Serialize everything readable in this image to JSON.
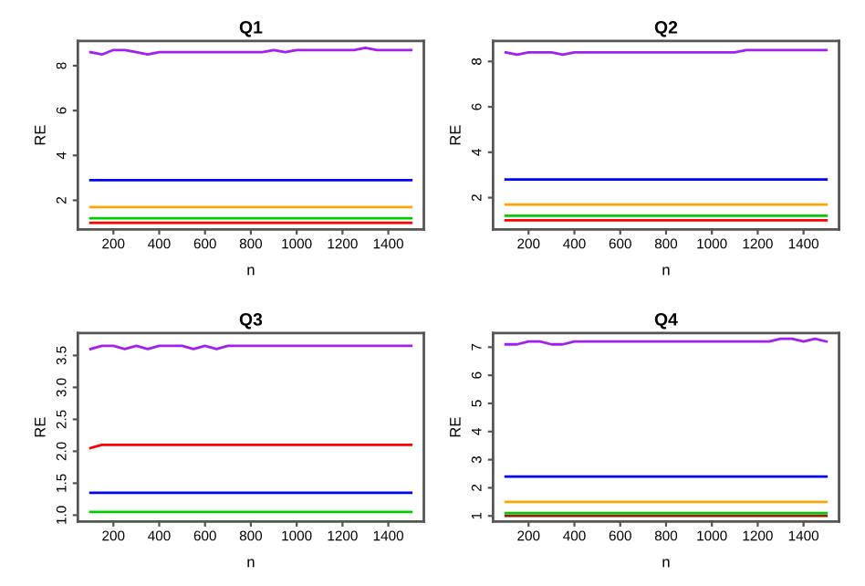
{
  "chart_data": [
    {
      "type": "line",
      "title": "Q1",
      "xlabel": "n",
      "ylabel": "RE",
      "xlim": [
        45,
        1555
      ],
      "ylim": [
        0.7,
        9.1
      ],
      "xticks": [
        200,
        400,
        600,
        800,
        1000,
        1200,
        1400
      ],
      "yticks": [
        2,
        4,
        6,
        8
      ],
      "grid": false,
      "marker": "none",
      "line_style": "solid",
      "x": [
        100,
        150,
        200,
        250,
        300,
        350,
        400,
        450,
        500,
        550,
        600,
        650,
        700,
        750,
        800,
        850,
        900,
        950,
        1000,
        1050,
        1100,
        1150,
        1200,
        1250,
        1300,
        1350,
        1400,
        1450,
        1500
      ],
      "series": [
        {
          "color": "#a020f0",
          "values": [
            8.6,
            8.5,
            8.7,
            8.7,
            8.6,
            8.5,
            8.6,
            8.6,
            8.6,
            8.6,
            8.6,
            8.6,
            8.6,
            8.6,
            8.6,
            8.6,
            8.7,
            8.6,
            8.7,
            8.7,
            8.7,
            8.7,
            8.7,
            8.7,
            8.8,
            8.7,
            8.7,
            8.7,
            8.7
          ]
        },
        {
          "color": "#0000ff",
          "values": [
            2.9,
            2.9,
            2.9,
            2.9,
            2.9,
            2.9,
            2.9,
            2.9,
            2.9,
            2.9,
            2.9,
            2.9,
            2.9,
            2.9,
            2.9,
            2.9,
            2.9,
            2.9,
            2.9,
            2.9,
            2.9,
            2.9,
            2.9,
            2.9,
            2.9,
            2.9,
            2.9,
            2.9,
            2.9
          ]
        },
        {
          "color": "#ffa500",
          "values": [
            1.7,
            1.7,
            1.7,
            1.7,
            1.7,
            1.7,
            1.7,
            1.7,
            1.7,
            1.7,
            1.7,
            1.7,
            1.7,
            1.7,
            1.7,
            1.7,
            1.7,
            1.7,
            1.7,
            1.7,
            1.7,
            1.7,
            1.7,
            1.7,
            1.7,
            1.7,
            1.7,
            1.7,
            1.7
          ]
        },
        {
          "color": "#00cc00",
          "values": [
            1.2,
            1.2,
            1.2,
            1.2,
            1.2,
            1.2,
            1.2,
            1.2,
            1.2,
            1.2,
            1.2,
            1.2,
            1.2,
            1.2,
            1.2,
            1.2,
            1.2,
            1.2,
            1.2,
            1.2,
            1.2,
            1.2,
            1.2,
            1.2,
            1.2,
            1.2,
            1.2,
            1.2,
            1.2
          ]
        },
        {
          "color": "#ff0000",
          "values": [
            1.0,
            1.0,
            1.0,
            1.0,
            1.0,
            1.0,
            1.0,
            1.0,
            1.0,
            1.0,
            1.0,
            1.0,
            1.0,
            1.0,
            1.0,
            1.0,
            1.0,
            1.0,
            1.0,
            1.0,
            1.0,
            1.0,
            1.0,
            1.0,
            1.0,
            1.0,
            1.0,
            1.0,
            1.0
          ]
        }
      ]
    },
    {
      "type": "line",
      "title": "Q2",
      "xlabel": "n",
      "ylabel": "RE",
      "xlim": [
        45,
        1555
      ],
      "ylim": [
        0.6,
        8.9
      ],
      "xticks": [
        200,
        400,
        600,
        800,
        1000,
        1200,
        1400
      ],
      "yticks": [
        2,
        4,
        6,
        8
      ],
      "grid": false,
      "marker": "none",
      "line_style": "solid",
      "x": [
        100,
        150,
        200,
        250,
        300,
        350,
        400,
        450,
        500,
        550,
        600,
        650,
        700,
        750,
        800,
        850,
        900,
        950,
        1000,
        1050,
        1100,
        1150,
        1200,
        1250,
        1300,
        1350,
        1400,
        1450,
        1500
      ],
      "series": [
        {
          "color": "#a020f0",
          "values": [
            8.4,
            8.3,
            8.4,
            8.4,
            8.4,
            8.3,
            8.4,
            8.4,
            8.4,
            8.4,
            8.4,
            8.4,
            8.4,
            8.4,
            8.4,
            8.4,
            8.4,
            8.4,
            8.4,
            8.4,
            8.4,
            8.5,
            8.5,
            8.5,
            8.5,
            8.5,
            8.5,
            8.5,
            8.5
          ]
        },
        {
          "color": "#0000ff",
          "values": [
            2.8,
            2.8,
            2.8,
            2.8,
            2.8,
            2.8,
            2.8,
            2.8,
            2.8,
            2.8,
            2.8,
            2.8,
            2.8,
            2.8,
            2.8,
            2.8,
            2.8,
            2.8,
            2.8,
            2.8,
            2.8,
            2.8,
            2.8,
            2.8,
            2.8,
            2.8,
            2.8,
            2.8,
            2.8
          ]
        },
        {
          "color": "#ffa500",
          "values": [
            1.7,
            1.7,
            1.7,
            1.7,
            1.7,
            1.7,
            1.7,
            1.7,
            1.7,
            1.7,
            1.7,
            1.7,
            1.7,
            1.7,
            1.7,
            1.7,
            1.7,
            1.7,
            1.7,
            1.7,
            1.7,
            1.7,
            1.7,
            1.7,
            1.7,
            1.7,
            1.7,
            1.7,
            1.7
          ]
        },
        {
          "color": "#00cc00",
          "values": [
            1.2,
            1.2,
            1.2,
            1.2,
            1.2,
            1.2,
            1.2,
            1.2,
            1.2,
            1.2,
            1.2,
            1.2,
            1.2,
            1.2,
            1.2,
            1.2,
            1.2,
            1.2,
            1.2,
            1.2,
            1.2,
            1.2,
            1.2,
            1.2,
            1.2,
            1.2,
            1.2,
            1.2,
            1.2
          ]
        },
        {
          "color": "#ff0000",
          "values": [
            1.0,
            1.0,
            1.0,
            1.0,
            1.0,
            1.0,
            1.0,
            1.0,
            1.0,
            1.0,
            1.0,
            1.0,
            1.0,
            1.0,
            1.0,
            1.0,
            1.0,
            1.0,
            1.0,
            1.0,
            1.0,
            1.0,
            1.0,
            1.0,
            1.0,
            1.0,
            1.0,
            1.0,
            1.0
          ]
        }
      ]
    },
    {
      "type": "line",
      "title": "Q3",
      "xlabel": "n",
      "ylabel": "RE",
      "xlim": [
        45,
        1555
      ],
      "ylim": [
        0.9,
        3.85
      ],
      "xticks": [
        200,
        400,
        600,
        800,
        1000,
        1200,
        1400
      ],
      "yticks": [
        {
          "value": 1.0,
          "label": "1.0"
        },
        {
          "value": 1.5,
          "label": "1.5"
        },
        {
          "value": 2.0,
          "label": "2.0"
        },
        {
          "value": 2.5,
          "label": "2.5"
        },
        {
          "value": 3.0,
          "label": "3.0"
        },
        {
          "value": 3.5,
          "label": "3.5"
        }
      ],
      "grid": false,
      "marker": "none",
      "line_style": "solid",
      "x": [
        100,
        150,
        200,
        250,
        300,
        350,
        400,
        450,
        500,
        550,
        600,
        650,
        700,
        750,
        800,
        850,
        900,
        950,
        1000,
        1050,
        1100,
        1150,
        1200,
        1250,
        1300,
        1350,
        1400,
        1450,
        1500
      ],
      "series": [
        {
          "color": "#a020f0",
          "values": [
            3.6,
            3.65,
            3.65,
            3.6,
            3.65,
            3.6,
            3.65,
            3.65,
            3.65,
            3.6,
            3.65,
            3.6,
            3.65,
            3.65,
            3.65,
            3.65,
            3.65,
            3.65,
            3.65,
            3.65,
            3.65,
            3.65,
            3.65,
            3.65,
            3.65,
            3.65,
            3.65,
            3.65,
            3.65
          ]
        },
        {
          "color": "#ff0000",
          "values": [
            2.05,
            2.1,
            2.1,
            2.1,
            2.1,
            2.1,
            2.1,
            2.1,
            2.1,
            2.1,
            2.1,
            2.1,
            2.1,
            2.1,
            2.1,
            2.1,
            2.1,
            2.1,
            2.1,
            2.1,
            2.1,
            2.1,
            2.1,
            2.1,
            2.1,
            2.1,
            2.1,
            2.1,
            2.1
          ]
        },
        {
          "color": "#0000ff",
          "values": [
            1.35,
            1.35,
            1.35,
            1.35,
            1.35,
            1.35,
            1.35,
            1.35,
            1.35,
            1.35,
            1.35,
            1.35,
            1.35,
            1.35,
            1.35,
            1.35,
            1.35,
            1.35,
            1.35,
            1.35,
            1.35,
            1.35,
            1.35,
            1.35,
            1.35,
            1.35,
            1.35,
            1.35,
            1.35
          ]
        },
        {
          "color": "#00cc00",
          "values": [
            1.05,
            1.05,
            1.05,
            1.05,
            1.05,
            1.05,
            1.05,
            1.05,
            1.05,
            1.05,
            1.05,
            1.05,
            1.05,
            1.05,
            1.05,
            1.05,
            1.05,
            1.05,
            1.05,
            1.05,
            1.05,
            1.05,
            1.05,
            1.05,
            1.05,
            1.05,
            1.05,
            1.05,
            1.05
          ]
        }
      ]
    },
    {
      "type": "line",
      "title": "Q4",
      "xlabel": "n",
      "ylabel": "RE",
      "xlim": [
        45,
        1555
      ],
      "ylim": [
        0.8,
        7.5
      ],
      "xticks": [
        200,
        400,
        600,
        800,
        1000,
        1200,
        1400
      ],
      "yticks": [
        1,
        2,
        3,
        4,
        5,
        6,
        7
      ],
      "grid": false,
      "marker": "none",
      "line_style": "solid",
      "x": [
        100,
        150,
        200,
        250,
        300,
        350,
        400,
        450,
        500,
        550,
        600,
        650,
        700,
        750,
        800,
        850,
        900,
        950,
        1000,
        1050,
        1100,
        1150,
        1200,
        1250,
        1300,
        1350,
        1400,
        1450,
        1500
      ],
      "series": [
        {
          "color": "#a020f0",
          "values": [
            7.1,
            7.1,
            7.2,
            7.2,
            7.1,
            7.1,
            7.2,
            7.2,
            7.2,
            7.2,
            7.2,
            7.2,
            7.2,
            7.2,
            7.2,
            7.2,
            7.2,
            7.2,
            7.2,
            7.2,
            7.2,
            7.2,
            7.2,
            7.2,
            7.3,
            7.3,
            7.2,
            7.3,
            7.2
          ]
        },
        {
          "color": "#0000ff",
          "values": [
            2.4,
            2.4,
            2.4,
            2.4,
            2.4,
            2.4,
            2.4,
            2.4,
            2.4,
            2.4,
            2.4,
            2.4,
            2.4,
            2.4,
            2.4,
            2.4,
            2.4,
            2.4,
            2.4,
            2.4,
            2.4,
            2.4,
            2.4,
            2.4,
            2.4,
            2.4,
            2.4,
            2.4,
            2.4
          ]
        },
        {
          "color": "#ffa500",
          "values": [
            1.5,
            1.5,
            1.5,
            1.5,
            1.5,
            1.5,
            1.5,
            1.5,
            1.5,
            1.5,
            1.5,
            1.5,
            1.5,
            1.5,
            1.5,
            1.5,
            1.5,
            1.5,
            1.5,
            1.5,
            1.5,
            1.5,
            1.5,
            1.5,
            1.5,
            1.5,
            1.5,
            1.5,
            1.5
          ]
        },
        {
          "color": "#00cc00",
          "values": [
            1.1,
            1.1,
            1.1,
            1.1,
            1.1,
            1.1,
            1.1,
            1.1,
            1.1,
            1.1,
            1.1,
            1.1,
            1.1,
            1.1,
            1.1,
            1.1,
            1.1,
            1.1,
            1.1,
            1.1,
            1.1,
            1.1,
            1.1,
            1.1,
            1.1,
            1.1,
            1.1,
            1.1,
            1.1
          ]
        },
        {
          "color": "#8b2500",
          "values": [
            1.0,
            1.0,
            1.0,
            1.0,
            1.0,
            1.0,
            1.0,
            1.0,
            1.0,
            1.0,
            1.0,
            1.0,
            1.0,
            1.0,
            1.0,
            1.0,
            1.0,
            1.0,
            1.0,
            1.0,
            1.0,
            1.0,
            1.0,
            1.0,
            1.0,
            1.0,
            1.0,
            1.0,
            1.0
          ]
        }
      ]
    }
  ]
}
